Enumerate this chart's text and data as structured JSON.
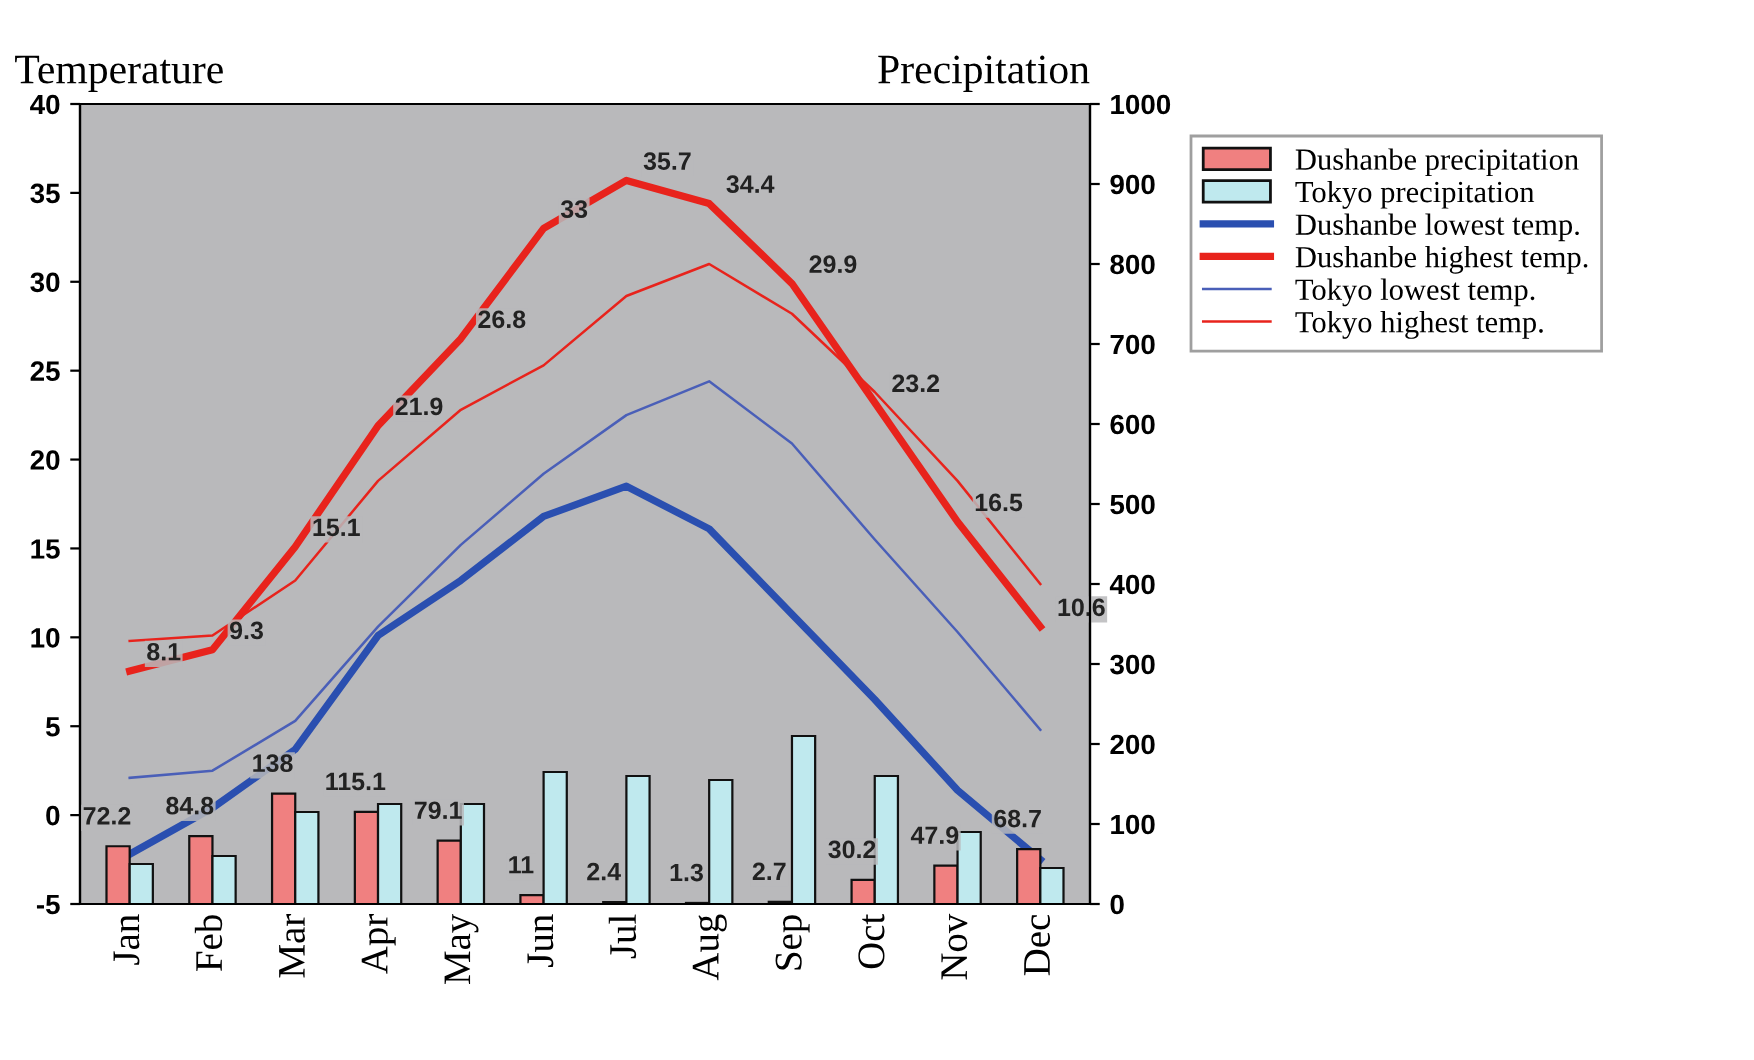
{
  "chart_data": {
    "type": "bar",
    "ylabel": "Temperature",
    "y2label": "Precipitation",
    "categories": [
      "Jan",
      "Feb",
      "Mar",
      "Apr",
      "May",
      "Jun",
      "Jul",
      "Aug",
      "Sep",
      "Oct",
      "Nov",
      "Dec"
    ],
    "series": [
      {
        "name": "Dushanbe precipitation",
        "axis": "y2",
        "color": "#f08080",
        "values": [
          72.2,
          84.8,
          138,
          115.1,
          79.1,
          11,
          2.4,
          1.3,
          2.7,
          30.2,
          47.9,
          68.7
        ],
        "data_labels": true
      },
      {
        "name": "Tokyo precipitation",
        "axis": "y2",
        "color": "#bfe9ee",
        "values": [
          50,
          60,
          115,
          125,
          125,
          165,
          160,
          155,
          210,
          160,
          90,
          45
        ]
      },
      {
        "name": "Dushanbe lowest temp.",
        "type": "line",
        "color": "#2a4fb0",
        "values": [
          -2.2,
          0.4,
          3.7,
          10.1,
          13.2,
          16.8,
          18.5,
          16.1,
          11.3,
          6.5,
          1.4,
          -2.5
        ]
      },
      {
        "name": "Dushanbe highest temp.",
        "type": "line",
        "color": "#e8231c",
        "values": [
          8.1,
          9.3,
          15.1,
          21.9,
          26.8,
          33,
          35.7,
          34.4,
          29.9,
          23.2,
          16.5,
          10.6
        ],
        "data_labels": true
      },
      {
        "name": "Tokyo lowest temp.",
        "type": "line",
        "color": "#4a5fb8",
        "values": [
          2.1,
          2.5,
          5.3,
          10.6,
          15.2,
          19.2,
          22.5,
          24.4,
          20.9,
          15.5,
          10.3,
          4.8
        ]
      },
      {
        "name": "Tokyo highest temp.",
        "type": "line",
        "color": "#e8231c",
        "values": [
          9.8,
          10.1,
          13.2,
          18.8,
          22.8,
          25.3,
          29.2,
          31.0,
          28.2,
          23.8,
          18.8,
          13.0
        ]
      }
    ],
    "ylim": [
      -5,
      40
    ],
    "yticks": [
      -5,
      0,
      5,
      10,
      15,
      20,
      25,
      30,
      35,
      40
    ],
    "y2lim": [
      0,
      1000
    ],
    "y2ticks": [
      0,
      100,
      200,
      300,
      400,
      500,
      600,
      700,
      800,
      900,
      1000
    ],
    "grid": false,
    "legend": "top right",
    "marker": "none",
    "line_style": "solid"
  }
}
